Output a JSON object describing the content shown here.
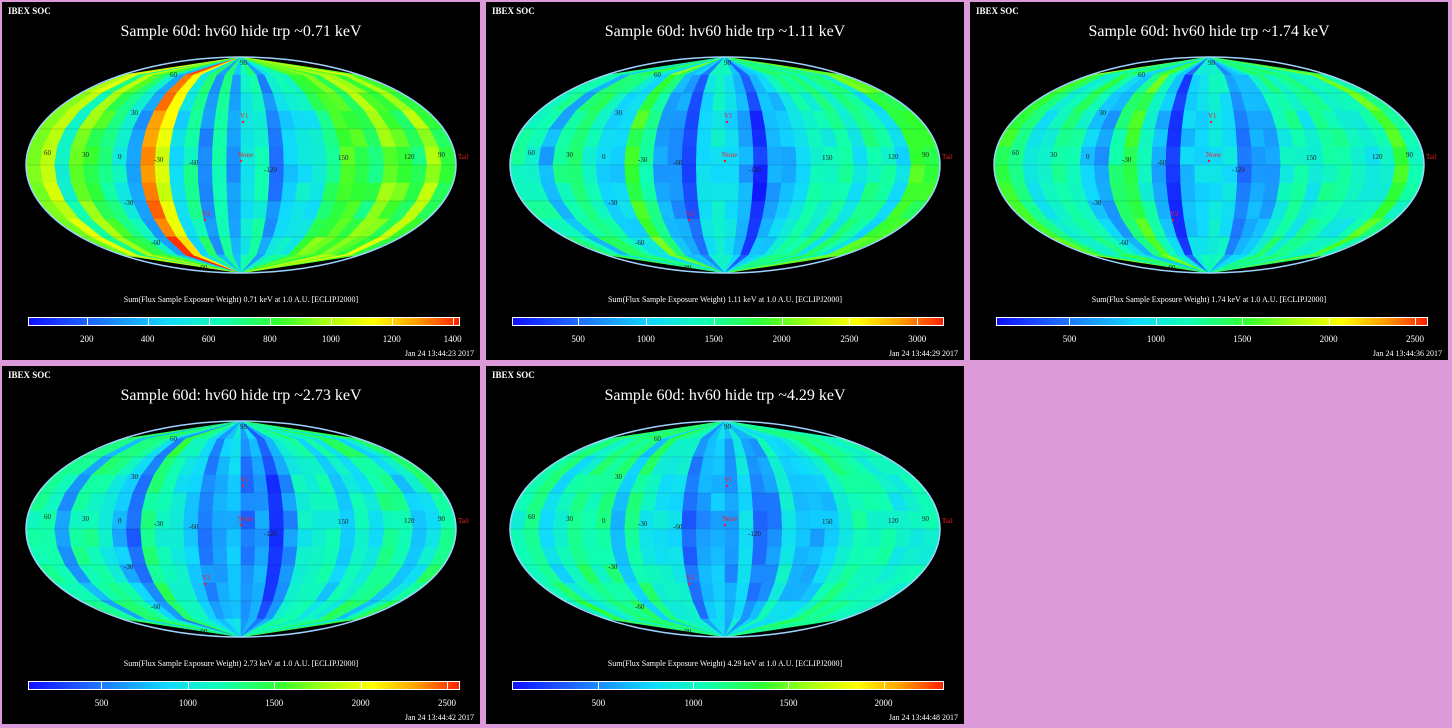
{
  "tag": "IBEX SOC",
  "panels": [
    {
      "title": "Sample 60d: hv60 hide trp ~0.71 keV",
      "caption": "Sum(Flux Sample Exposure Weight)  0.71 keV at 1.0 A.U. [ECLIPJ2000]",
      "timestamp": "Jan 24 13:44:23 2017",
      "ticks": [
        "200",
        "400",
        "600",
        "800",
        "1000",
        "1200",
        "1400"
      ],
      "tickpos": [
        0.136,
        0.277,
        0.418,
        0.56,
        0.701,
        0.842,
        0.983
      ],
      "warm": 0.75
    },
    {
      "title": "Sample 60d: hv60 hide trp ~1.11 keV",
      "caption": "Sum(Flux Sample Exposure Weight)  1.11 keV at 1.0 A.U. [ECLIPJ2000]",
      "timestamp": "Jan 24 13:44:29 2017",
      "ticks": [
        "500",
        "1000",
        "1500",
        "2000",
        "2500",
        "3000"
      ],
      "tickpos": [
        0.153,
        0.31,
        0.467,
        0.624,
        0.781,
        0.938
      ],
      "warm": 0.45
    },
    {
      "title": "Sample 60d: hv60 hide trp ~1.74 keV",
      "caption": "Sum(Flux Sample Exposure Weight)  1.74 keV at 1.0 A.U. [ECLIPJ2000]",
      "timestamp": "Jan 24 13:44:36 2017",
      "ticks": [
        "500",
        "1000",
        "1500",
        "2000",
        "2500"
      ],
      "tickpos": [
        0.17,
        0.37,
        0.57,
        0.77,
        0.97
      ],
      "warm": 0.42
    },
    {
      "title": "Sample 60d: hv60 hide trp ~2.73 keV",
      "caption": "Sum(Flux Sample Exposure Weight)  2.73 keV at 1.0 A.U. [ECLIPJ2000]",
      "timestamp": "Jan 24 13:44:42 2017",
      "ticks": [
        "500",
        "1000",
        "1500",
        "2000",
        "2500"
      ],
      "tickpos": [
        0.17,
        0.37,
        0.57,
        0.77,
        0.97
      ],
      "warm": 0.28
    },
    {
      "title": "Sample 60d: hv60 hide trp ~4.29 keV",
      "caption": "Sum(Flux Sample Exposure Weight)  4.29 keV at 1.0 A.U. [ECLIPJ2000]",
      "timestamp": "Jan 24 13:44:48 2017",
      "ticks": [
        "500",
        "1000",
        "1500",
        "2000"
      ],
      "tickpos": [
        0.2,
        0.42,
        0.64,
        0.86
      ],
      "warm": 0.32
    }
  ],
  "map_labels": {
    "lat_labels": [
      "60",
      "30",
      "-30",
      "-60",
      "90",
      "-90"
    ],
    "lon_labels": [
      "60",
      "30",
      "0",
      "-30",
      "-60",
      "-90",
      "-120",
      "150",
      "120",
      "90"
    ],
    "markers": [
      "V1",
      "None",
      "V2"
    ],
    "tail": "Tail"
  }
}
